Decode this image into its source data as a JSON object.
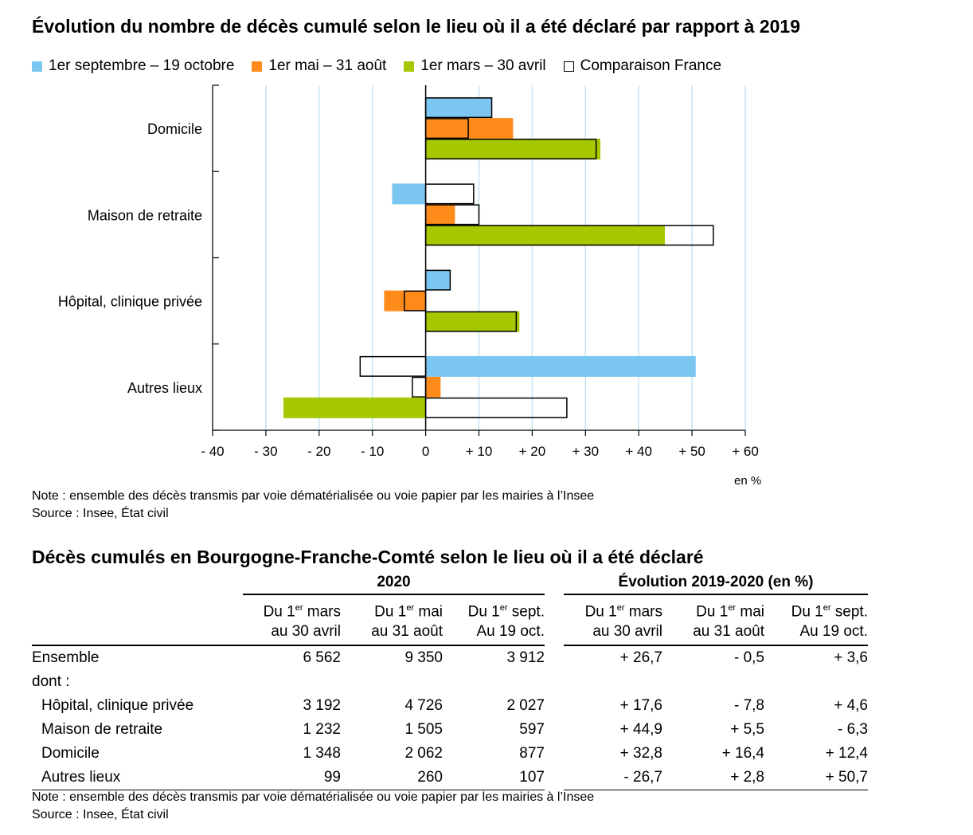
{
  "chart_data": {
    "type": "bar",
    "orientation": "horizontal",
    "title": "Évolution du nombre de décès cumulé selon le lieu où il a été déclaré par rapport à 2019",
    "unit_label": "en %",
    "categories": [
      "Domicile",
      "Maison de retraite",
      "Hôpital, clinique privée",
      "Autres lieux"
    ],
    "series": [
      {
        "name": "1er septembre – 19 octobre",
        "color": "#7cc6f2",
        "values": [
          12.4,
          -6.3,
          4.6,
          50.7
        ],
        "comparison_france": [
          12.4,
          9.0,
          4.6,
          -12.3
        ]
      },
      {
        "name": "1er mai – 31 août",
        "color": "#ff8c1a",
        "values": [
          16.4,
          5.5,
          -7.8,
          2.8
        ],
        "comparison_france": [
          8.0,
          10.0,
          -4.0,
          -2.5
        ]
      },
      {
        "name": "1er mars – 30 avril",
        "color": "#a6c800",
        "values": [
          32.8,
          44.9,
          17.6,
          -26.7
        ],
        "comparison_france": [
          32.0,
          54.0,
          17.0,
          26.5
        ]
      }
    ],
    "comparison_legend": "Comparaison France",
    "xlim": [
      -40,
      60
    ],
    "xticks": [
      -40,
      -30,
      -20,
      -10,
      0,
      10,
      20,
      30,
      40,
      50,
      60
    ],
    "xtick_labels": [
      "- 40",
      "- 30",
      "- 20",
      "- 10",
      "0",
      "+ 10",
      "+ 20",
      "+ 30",
      "+ 40",
      "+ 50",
      "+ 60"
    ],
    "grid": true,
    "legend_position": "top-left"
  },
  "chart_note": "Note : ensemble des décès transmis par voie dématérialisée ou voie papier par les mairies à l’Insee",
  "chart_source": "Source : Insee, État civil",
  "table": {
    "title": "Décès cumulés en Bourgogne-Franche-Comté selon le lieu où il a été déclaré",
    "group_2020": "2020",
    "group_evolution": "Évolution 2019-2020 (en %)",
    "col1_pre": "Du 1",
    "col1_sup": "er",
    "col1_post": " mars",
    "col1_line2": "au 30 avril",
    "col2_pre": "Du 1",
    "col2_sup": "er",
    "col2_post": " mai",
    "col2_line2": "au 31 août",
    "col3_pre": "Du 1",
    "col3_sup": "er",
    "col3_post": " sept.",
    "col3_line2": "Au 19 oct.",
    "rows": [
      {
        "label": "Ensemble",
        "v1": "6 562",
        "v2": "9 350",
        "v3": "3 912",
        "e1": "+ 26,7",
        "e2": "- 0,5",
        "e3": "+ 3,6"
      },
      {
        "label": "dont :"
      },
      {
        "label": "Hôpital, clinique privée",
        "v1": "3 192",
        "v2": "4 726",
        "v3": "2 027",
        "e1": "+ 17,6",
        "e2": "- 7,8",
        "e3": "+ 4,6"
      },
      {
        "label": "Maison de retraite",
        "v1": "1 232",
        "v2": "1 505",
        "v3": "597",
        "e1": "+ 44,9",
        "e2": "+ 5,5",
        "e3": "- 6,3"
      },
      {
        "label": "Domicile",
        "v1": "1 348",
        "v2": "2 062",
        "v3": "877",
        "e1": "+ 32,8",
        "e2": "+ 16,4",
        "e3": "+ 12,4"
      },
      {
        "label": "Autres lieux",
        "v1": "99",
        "v2": "260",
        "v3": "107",
        "e1": "- 26,7",
        "e2": "+ 2,8",
        "e3": "+ 50,7"
      }
    ],
    "note": "Note : ensemble des décès transmis par voie dématérialisée ou voie papier par les mairies à l’Insee",
    "source": "Source : Insee, État civil"
  }
}
